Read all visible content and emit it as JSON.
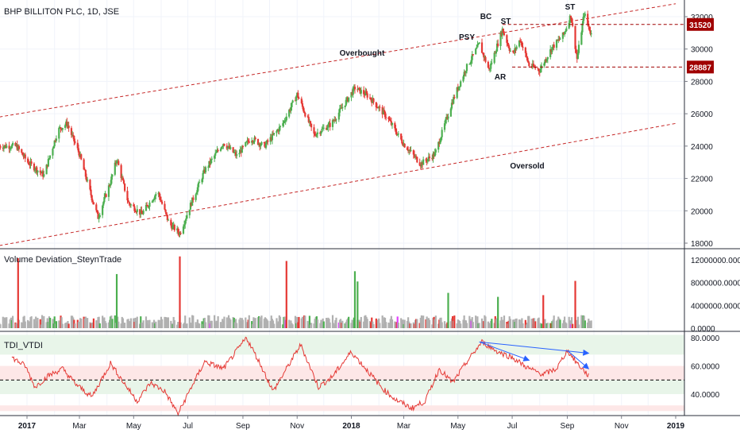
{
  "header": {
    "title": "BHP BILLITON PLC, 1D, JSE"
  },
  "colors": {
    "up": "#4caf50",
    "down": "#e53935",
    "channel": "#c62828",
    "price_tag": "#a00000",
    "tdi_line": "#e53935",
    "arrow": "#2962ff",
    "vol_grey": "#b0b0b0",
    "vol_magenta": "#e040fb",
    "band_green": "#e8f5e9",
    "band_red": "#fde7e7"
  },
  "price_panel": {
    "y_ticks": [
      "32000",
      "30000",
      "28000",
      "26000",
      "24000",
      "22000",
      "20000",
      "18000"
    ],
    "price_tags": [
      "31520",
      "28887"
    ],
    "annotations": [
      {
        "id": "overbought",
        "text": "Overbought"
      },
      {
        "id": "oversold",
        "text": "Oversold"
      },
      {
        "id": "psy",
        "text": "PSY"
      },
      {
        "id": "bc",
        "text": "BC"
      },
      {
        "id": "st1",
        "text": "ST"
      },
      {
        "id": "st2",
        "text": "ST"
      },
      {
        "id": "ar",
        "text": "AR"
      }
    ]
  },
  "volume_panel": {
    "title": "Volume Deviation_SteynTrade",
    "y_ticks": [
      "12000000.0000",
      "8000000.0000",
      "4000000.0000",
      "0.0000"
    ]
  },
  "tdi_panel": {
    "title": "TDI_VTDI",
    "y_ticks": [
      "80.0000",
      "60.0000",
      "40.0000"
    ]
  },
  "x_axis": {
    "labels": [
      "2017",
      "Mar",
      "May",
      "Jul",
      "Sep",
      "Nov",
      "2018",
      "Mar",
      "May",
      "Jul",
      "Sep",
      "Nov",
      "2019"
    ]
  },
  "chart_data": {
    "type": "candlestick",
    "title": "BHP BILLITON PLC, 1D, JSE",
    "x_range": [
      "2016-12",
      "2019-01"
    ],
    "price_ylim": [
      17600,
      32800
    ],
    "price_anchors": [
      [
        "2016-12-20",
        24000
      ],
      [
        "2017-01-02",
        23000
      ],
      [
        "2017-01-20",
        22200
      ],
      [
        "2017-02-05",
        25000
      ],
      [
        "2017-02-15",
        25400
      ],
      [
        "2017-03-01",
        23500
      ],
      [
        "2017-03-15",
        20800
      ],
      [
        "2017-03-22",
        19600
      ],
      [
        "2017-04-05",
        21800
      ],
      [
        "2017-04-12",
        23200
      ],
      [
        "2017-04-25",
        20500
      ],
      [
        "2017-05-10",
        19800
      ],
      [
        "2017-05-28",
        21200
      ],
      [
        "2017-06-10",
        19200
      ],
      [
        "2017-06-22",
        18600
      ],
      [
        "2017-07-05",
        20500
      ],
      [
        "2017-07-20",
        22500
      ],
      [
        "2017-08-10",
        24200
      ],
      [
        "2017-08-25",
        23400
      ],
      [
        "2017-09-10",
        24500
      ],
      [
        "2017-09-25",
        24000
      ],
      [
        "2017-10-15",
        25300
      ],
      [
        "2017-11-01",
        27200
      ],
      [
        "2017-11-20",
        24700
      ],
      [
        "2017-12-10",
        25400
      ],
      [
        "2018-01-05",
        27600
      ],
      [
        "2018-01-20",
        27100
      ],
      [
        "2018-02-10",
        25800
      ],
      [
        "2018-02-28",
        24200
      ],
      [
        "2018-03-20",
        22900
      ],
      [
        "2018-04-05",
        23500
      ],
      [
        "2018-04-25",
        26800
      ],
      [
        "2018-05-10",
        28800
      ],
      [
        "2018-05-25",
        30300
      ],
      [
        "2018-06-05",
        28700
      ],
      [
        "2018-06-20",
        31200
      ],
      [
        "2018-07-01",
        29600
      ],
      [
        "2018-07-10",
        30600
      ],
      [
        "2018-07-20",
        29000
      ],
      [
        "2018-08-01",
        28700
      ],
      [
        "2018-08-15",
        30100
      ],
      [
        "2018-08-28",
        30900
      ],
      [
        "2018-09-05",
        32100
      ],
      [
        "2018-09-12",
        29400
      ],
      [
        "2018-09-20",
        32200
      ],
      [
        "2018-09-28",
        30900
      ]
    ],
    "tdi_anchors": [
      [
        "2016-12-15",
        66
      ],
      [
        "2016-12-30",
        60
      ],
      [
        "2017-01-10",
        45
      ],
      [
        "2017-01-25",
        53
      ],
      [
        "2017-02-10",
        58
      ],
      [
        "2017-02-25",
        47
      ],
      [
        "2017-03-15",
        38
      ],
      [
        "2017-04-05",
        62
      ],
      [
        "2017-04-20",
        48
      ],
      [
        "2017-05-05",
        35
      ],
      [
        "2017-05-20",
        48
      ],
      [
        "2017-06-05",
        42
      ],
      [
        "2017-06-20",
        26
      ],
      [
        "2017-07-05",
        45
      ],
      [
        "2017-07-20",
        63
      ],
      [
        "2017-08-10",
        58
      ],
      [
        "2017-09-05",
        80
      ],
      [
        "2017-09-20",
        62
      ],
      [
        "2017-10-05",
        42
      ],
      [
        "2017-10-20",
        58
      ],
      [
        "2017-11-05",
        75
      ],
      [
        "2017-11-25",
        45
      ],
      [
        "2017-12-10",
        52
      ],
      [
        "2018-01-01",
        70
      ],
      [
        "2018-01-20",
        56
      ],
      [
        "2018-02-05",
        44
      ],
      [
        "2018-02-20",
        36
      ],
      [
        "2018-03-10",
        30
      ],
      [
        "2018-03-25",
        35
      ],
      [
        "2018-04-10",
        58
      ],
      [
        "2018-04-25",
        48
      ],
      [
        "2018-05-10",
        62
      ],
      [
        "2018-05-28",
        77
      ],
      [
        "2018-06-15",
        70
      ],
      [
        "2018-07-01",
        66
      ],
      [
        "2018-07-20",
        58
      ],
      [
        "2018-08-05",
        54
      ],
      [
        "2018-08-20",
        58
      ],
      [
        "2018-09-01",
        71
      ],
      [
        "2018-09-12",
        62
      ],
      [
        "2018-09-25",
        53
      ]
    ],
    "volume_spikes_millions": [
      [
        "2016-12-22",
        12.3,
        "down"
      ],
      [
        "2017-04-12",
        9.5,
        "up"
      ],
      [
        "2017-06-22",
        12.6,
        "down"
      ],
      [
        "2017-10-20",
        11.8,
        "down"
      ],
      [
        "2018-01-05",
        10.0,
        "up"
      ],
      [
        "2018-01-08",
        8.2,
        "up"
      ],
      [
        "2018-04-20",
        6.2,
        "up"
      ],
      [
        "2018-06-15",
        5.5,
        "up"
      ],
      [
        "2018-08-05",
        5.8,
        "down"
      ],
      [
        "2018-09-10",
        8.3,
        "down"
      ]
    ],
    "volume_ylim": [
      0,
      12600000
    ],
    "tdi_ylim": [
      28,
      82
    ],
    "tdi_midline": 50,
    "tdi_bands": [
      [
        68,
        82,
        "green"
      ],
      [
        50,
        60,
        "red"
      ],
      [
        40,
        50,
        "green"
      ],
      [
        28,
        32,
        "red"
      ]
    ],
    "price_levels": [
      31520,
      28887
    ],
    "channel_upper": [
      [
        "2016-12-01",
        25800
      ],
      [
        "2019-01-01",
        32800
      ]
    ],
    "channel_lower": [
      [
        "2016-12-01",
        17850
      ],
      [
        "2019-01-01",
        25400
      ]
    ],
    "divergence_arrows": [
      [
        [
          "2018-05-25",
          77
        ],
        [
          "2018-07-20",
          64
        ]
      ],
      [
        [
          "2018-05-25",
          77
        ],
        [
          "2018-09-25",
          69
        ]
      ],
      [
        [
          "2018-09-01",
          71
        ],
        [
          "2018-09-25",
          58
        ]
      ]
    ]
  }
}
